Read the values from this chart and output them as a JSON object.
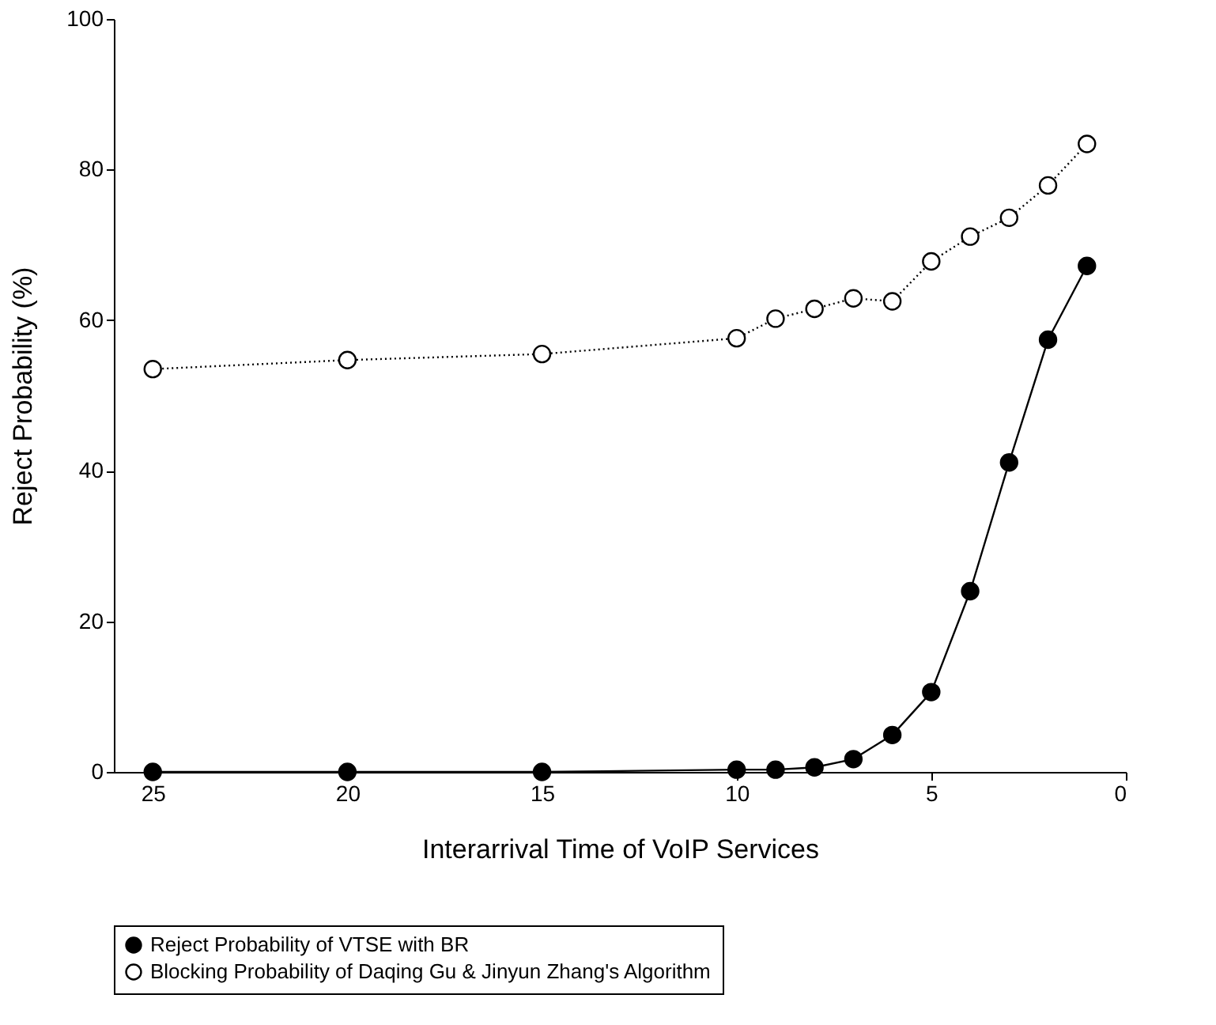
{
  "chart_data": {
    "type": "line",
    "xlabel": "Interarrival Time of VoIP Services",
    "ylabel": "Reject Probability (%)",
    "x": [
      25,
      20,
      15,
      10,
      9,
      8,
      7,
      6,
      5,
      4,
      3,
      2,
      1
    ],
    "xlim": [
      26,
      0
    ],
    "xticks": [
      25,
      20,
      15,
      10,
      5,
      0
    ],
    "ylim": [
      0,
      100
    ],
    "yticks": [
      0,
      20,
      40,
      60,
      80,
      100
    ],
    "grid": false,
    "legend": "bottom",
    "marker": "circle",
    "series": [
      {
        "name": "Reject Probability of VTSE with BR",
        "color": "#000000",
        "line_style": "solid",
        "values": [
          0,
          0,
          0,
          0.3,
          0.3,
          0.6,
          1.7,
          4.9,
          10.6,
          24.0,
          41.1,
          57.4,
          67.2
        ]
      },
      {
        "name": "Blocking Probability of Daqing Gu & Jinyun Zhang's Algorithm",
        "color": "#000000",
        "line_style": "dotted",
        "values": [
          53.5,
          54.7,
          55.5,
          57.6,
          60.2,
          61.5,
          62.9,
          62.5,
          67.8,
          71.1,
          73.6,
          77.9,
          83.4
        ]
      }
    ]
  }
}
